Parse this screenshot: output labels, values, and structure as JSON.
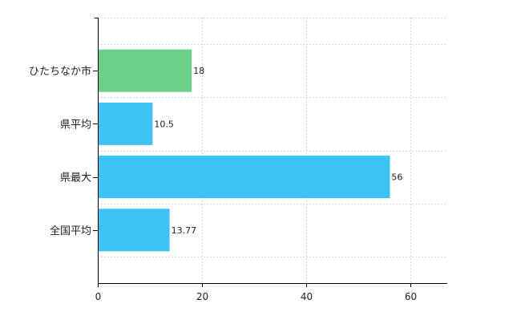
{
  "chart_data": {
    "type": "bar",
    "orientation": "horizontal",
    "categories": [
      "ひたちなか市",
      "県平均",
      "県最大",
      "全国平均"
    ],
    "values": [
      18,
      10.5,
      56,
      13.77
    ],
    "data_labels": [
      "18",
      "10.5",
      "56",
      "13.77"
    ],
    "bar_colors": [
      "#6cd186",
      "#3ec1f5",
      "#3ec1f5",
      "#3ec1f5"
    ],
    "xlim": [
      0,
      67
    ],
    "xticks": [
      0,
      20,
      40,
      60
    ],
    "xtick_labels": [
      "0",
      "20",
      "40",
      "60"
    ],
    "grid": true,
    "legend": "none"
  }
}
